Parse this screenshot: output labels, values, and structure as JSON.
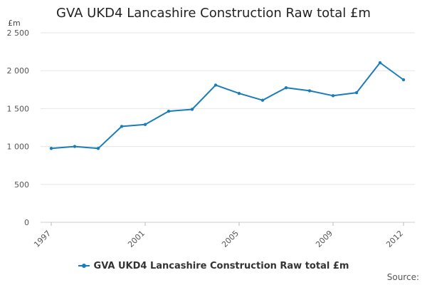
{
  "chart_data": {
    "type": "line",
    "title": "GVA UKD4 Lancashire Construction Raw total £m",
    "ylabel": "£m",
    "xlabel": "",
    "x": [
      1997,
      1998,
      1999,
      2000,
      2001,
      2002,
      2003,
      2004,
      2005,
      2006,
      2007,
      2008,
      2009,
      2010,
      2011,
      2012
    ],
    "series": [
      {
        "name": "GVA UKD4 Lancashire Construction Raw total £m",
        "values": [
          975,
          1000,
          975,
          1265,
          1290,
          1465,
          1490,
          1810,
          1700,
          1610,
          1775,
          1735,
          1670,
          1710,
          2105,
          1880
        ],
        "color": "#1a7dba"
      }
    ],
    "ylim": [
      0,
      2500
    ],
    "yticks": [
      {
        "value": 0,
        "label": "0"
      },
      {
        "value": 500,
        "label": "500"
      },
      {
        "value": 1000,
        "label": "1 000"
      },
      {
        "value": 1500,
        "label": "1 500"
      },
      {
        "value": 2000,
        "label": "2 000"
      },
      {
        "value": 2500,
        "label": "2 500"
      }
    ],
    "xticks": [
      "1997",
      "2001",
      "2005",
      "2009",
      "2012"
    ],
    "grid": true,
    "legend_position": "bottom"
  },
  "source_label": "Source:"
}
